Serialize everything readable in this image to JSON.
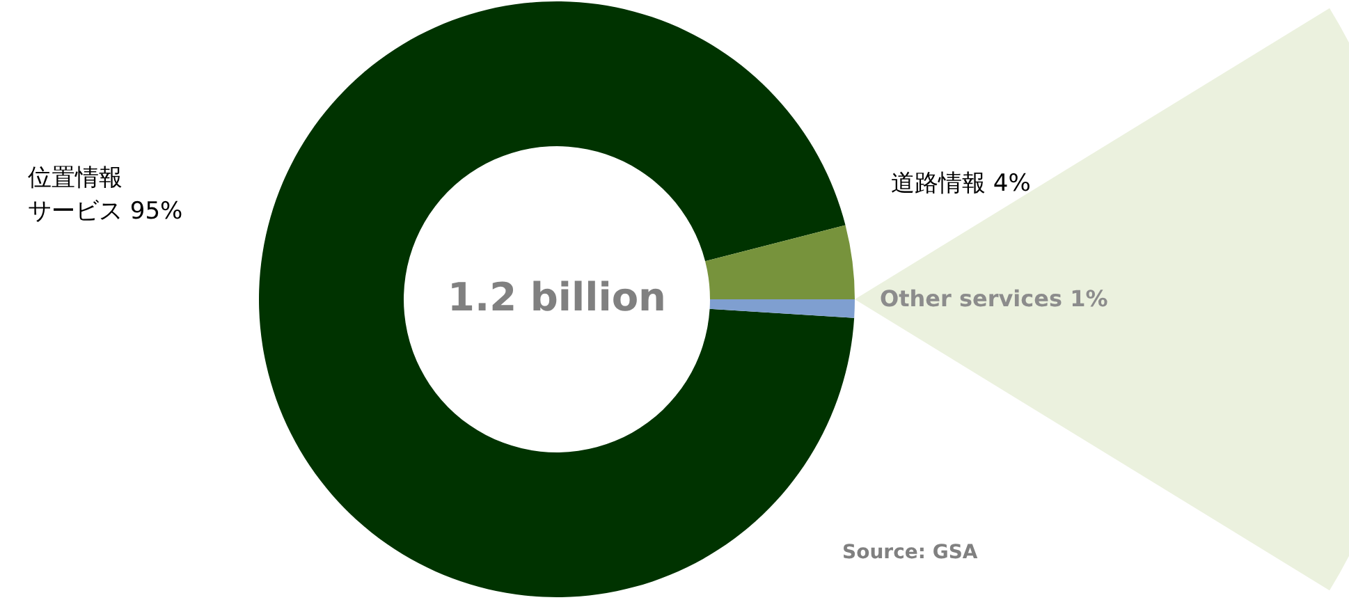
{
  "chart_data": {
    "type": "donut",
    "categories": [
      "位置情報サービス",
      "道路情報",
      "Other services"
    ],
    "values": [
      95,
      4,
      1
    ],
    "value_labels": [
      "95%",
      "4%",
      "1%"
    ],
    "colors": [
      "#003300",
      "#77933c",
      "#7f9fd0"
    ],
    "annotations": [
      "1.2 billion",
      "Source: GSA"
    ]
  }
}
